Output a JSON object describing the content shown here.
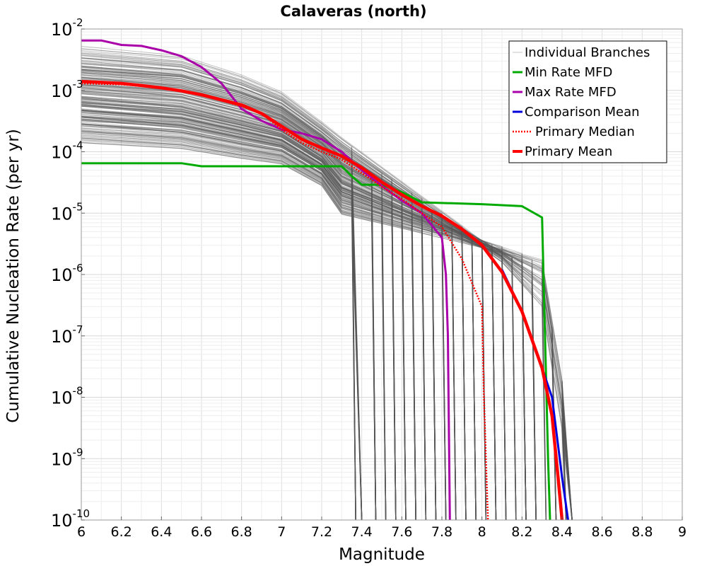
{
  "chart_data": {
    "type": "line",
    "title": "Calaveras (north)",
    "xlabel": "Magnitude",
    "ylabel": "Cumulative Nucleation Rate (per yr)",
    "xlim": [
      6,
      9
    ],
    "ylim": [
      1e-10,
      0.01
    ],
    "yscale": "log",
    "grid": true,
    "legend_position": "top-right",
    "x_ticks": [
      "6",
      "6.2",
      "6.4",
      "6.6",
      "6.8",
      "7",
      "7.2",
      "7.4",
      "7.6",
      "7.8",
      "8",
      "8.2",
      "8.4",
      "8.6",
      "8.8",
      "9"
    ],
    "y_ticks": [
      {
        "base": "10",
        "exp": "-10",
        "value": 1e-10
      },
      {
        "base": "10",
        "exp": "-9",
        "value": 1e-09
      },
      {
        "base": "10",
        "exp": "-8",
        "value": 1e-08
      },
      {
        "base": "10",
        "exp": "-7",
        "value": 1e-07
      },
      {
        "base": "10",
        "exp": "-6",
        "value": 1e-06
      },
      {
        "base": "10",
        "exp": "-5",
        "value": 1e-05
      },
      {
        "base": "10",
        "exp": "-4",
        "value": 0.0001
      },
      {
        "base": "10",
        "exp": "-3",
        "value": 0.001
      },
      {
        "base": "10",
        "exp": "-2",
        "value": 0.01
      }
    ],
    "series": [
      {
        "name": "Individual Branches",
        "color": "#555555",
        "style": "thin",
        "note": "many semi-transparent gray branch curves",
        "envelope_upper": [
          [
            6.0,
            0.004
          ],
          [
            6.5,
            0.003
          ],
          [
            6.8,
            0.0015
          ],
          [
            7.0,
            0.0008
          ],
          [
            7.3,
            0.0004
          ],
          [
            7.6,
            0.0002
          ],
          [
            7.9,
            0.0001
          ],
          [
            8.1,
            6e-05
          ],
          [
            8.3,
            2e-05
          ],
          [
            8.45,
            3e-08
          ]
        ],
        "envelope_lower": [
          [
            6.0,
            0.0002
          ],
          [
            6.5,
            0.00015
          ],
          [
            6.8,
            0.0001
          ],
          [
            7.0,
            8e-05
          ],
          [
            7.2,
            5e-05
          ],
          [
            7.3,
            2e-05
          ],
          [
            7.35,
            1e-10
          ]
        ],
        "drop_magnitudes": [
          7.35,
          7.38,
          7.45,
          7.5,
          7.55,
          7.6,
          7.65,
          7.7,
          7.75,
          7.8,
          7.85,
          7.9,
          7.95,
          8.0,
          8.05,
          8.1,
          8.15,
          8.2,
          8.25,
          8.3,
          8.35,
          8.4,
          8.43
        ]
      },
      {
        "name": "Min Rate MFD",
        "color": "#00aa00",
        "style": "solid",
        "points": [
          [
            6.0,
            6.5e-05
          ],
          [
            6.5,
            6.5e-05
          ],
          [
            6.6,
            5.8e-05
          ],
          [
            7.0,
            5.8e-05
          ],
          [
            7.3,
            5.8e-05
          ],
          [
            7.35,
            4e-05
          ],
          [
            7.4,
            2.9e-05
          ],
          [
            7.5,
            2.9e-05
          ],
          [
            7.6,
            2.2e-05
          ],
          [
            7.7,
            1.5e-05
          ],
          [
            8.0,
            1.4e-05
          ],
          [
            8.2,
            1.3e-05
          ],
          [
            8.3,
            8.5e-06
          ],
          [
            8.33,
            1e-09
          ],
          [
            8.34,
            1e-10
          ]
        ]
      },
      {
        "name": "Max Rate MFD",
        "color": "#aa00aa",
        "style": "solid",
        "points": [
          [
            6.0,
            0.0065
          ],
          [
            6.1,
            0.0065
          ],
          [
            6.2,
            0.0055
          ],
          [
            6.3,
            0.0053
          ],
          [
            6.4,
            0.0045
          ],
          [
            6.5,
            0.0036
          ],
          [
            6.6,
            0.0024
          ],
          [
            6.7,
            0.0013
          ],
          [
            6.8,
            0.0005
          ],
          [
            6.9,
            0.00032
          ],
          [
            7.0,
            0.00023
          ],
          [
            7.1,
            0.0002
          ],
          [
            7.2,
            0.00016
          ],
          [
            7.3,
            0.0001
          ],
          [
            7.4,
            5e-05
          ],
          [
            7.5,
            2.8e-05
          ],
          [
            7.6,
            1.6e-05
          ],
          [
            7.7,
            1e-05
          ],
          [
            7.8,
            4e-06
          ],
          [
            7.82,
            1e-06
          ],
          [
            7.83,
            1e-07
          ],
          [
            7.84,
            1e-10
          ]
        ]
      },
      {
        "name": "Comparison Mean",
        "color": "#0000dd",
        "style": "solid",
        "points": [
          [
            8.1,
            1.2e-06
          ],
          [
            8.2,
            2.5e-07
          ],
          [
            8.3,
            3e-08
          ],
          [
            8.35,
            1e-08
          ],
          [
            8.4,
            5e-10
          ],
          [
            8.43,
            1e-10
          ]
        ]
      },
      {
        "name": "Primary Median",
        "color": "#ff0000",
        "style": "dotted",
        "points": [
          [
            6.0,
            0.0013
          ],
          [
            6.2,
            0.00125
          ],
          [
            6.4,
            0.0011
          ],
          [
            6.6,
            0.00085
          ],
          [
            6.8,
            0.00055
          ],
          [
            6.9,
            0.00042
          ],
          [
            7.0,
            0.00023
          ],
          [
            7.1,
            0.00014
          ],
          [
            7.2,
            0.0001
          ],
          [
            7.3,
            7.5e-05
          ],
          [
            7.4,
            4.5e-05
          ],
          [
            7.5,
            2.7e-05
          ],
          [
            7.6,
            1.7e-05
          ],
          [
            7.7,
            1e-05
          ],
          [
            7.8,
            6e-06
          ],
          [
            7.9,
            1.8e-06
          ],
          [
            8.0,
            3e-07
          ],
          [
            8.01,
            1e-08
          ],
          [
            8.02,
            1e-09
          ],
          [
            8.03,
            1e-10
          ]
        ]
      },
      {
        "name": "Primary Mean",
        "color": "#ff0000",
        "style": "thick",
        "points": [
          [
            6.0,
            0.0014
          ],
          [
            6.1,
            0.00135
          ],
          [
            6.2,
            0.0013
          ],
          [
            6.3,
            0.0012
          ],
          [
            6.4,
            0.0011
          ],
          [
            6.5,
            0.00098
          ],
          [
            6.6,
            0.00085
          ],
          [
            6.7,
            0.0007
          ],
          [
            6.8,
            0.00058
          ],
          [
            6.9,
            0.00042
          ],
          [
            7.0,
            0.00026
          ],
          [
            7.1,
            0.00016
          ],
          [
            7.2,
            0.000115
          ],
          [
            7.3,
            8.5e-05
          ],
          [
            7.4,
            5.5e-05
          ],
          [
            7.5,
            3.2e-05
          ],
          [
            7.6,
            2e-05
          ],
          [
            7.7,
            1.3e-05
          ],
          [
            7.8,
            9e-06
          ],
          [
            7.9,
            5.5e-06
          ],
          [
            8.0,
            3e-06
          ],
          [
            8.1,
            1.1e-06
          ],
          [
            8.2,
            2.5e-07
          ],
          [
            8.3,
            3e-08
          ],
          [
            8.35,
            5e-09
          ],
          [
            8.38,
            5e-10
          ],
          [
            8.4,
            1e-10
          ]
        ]
      }
    ]
  }
}
